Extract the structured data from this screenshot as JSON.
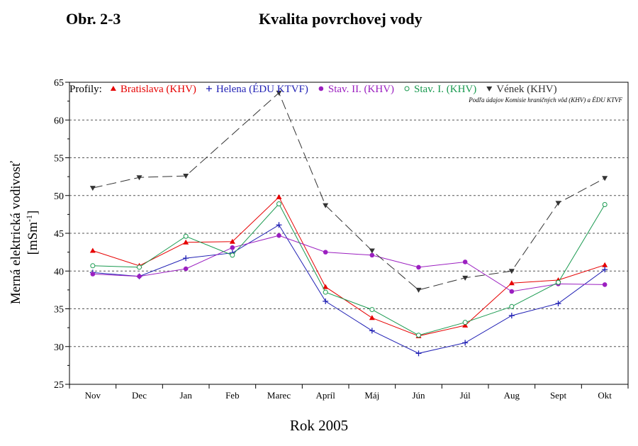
{
  "header": {
    "figure_label": "Obr. 2-3",
    "title": "Kvalita povrchovej vody"
  },
  "chart_data": {
    "type": "line",
    "title": "Kvalita povrchovej vody",
    "legend_prefix": "Profily:",
    "source_note": "Podľa údajov Komisie hraničných vôd (KHV) a ÉDU KTVF",
    "xlabel": "Rok 2005",
    "ylabel_line1": "Merná elektrická vodivosť",
    "ylabel_line2": "[mSm",
    "ylabel_sup": "-1",
    "ylabel_close": "]",
    "categories": [
      "Nov",
      "Dec",
      "Jan",
      "Feb",
      "Marec",
      "Apríl",
      "Máj",
      "Jún",
      "Júl",
      "Aug",
      "Sept",
      "Okt"
    ],
    "ylim": [
      25,
      65
    ],
    "yticks": [
      25,
      30,
      35,
      40,
      45,
      50,
      55,
      60,
      65
    ],
    "grid": "horizontal dashed",
    "legend_position": "top",
    "series": [
      {
        "name": "Bratislava (KHV)",
        "color": "#e60000",
        "marker": "triangle-up",
        "dash": "",
        "values": [
          42.7,
          40.7,
          43.8,
          43.9,
          49.8,
          37.9,
          33.8,
          31.4,
          32.8,
          38.4,
          38.8,
          40.8
        ]
      },
      {
        "name": "Helena (ÉDU KTVF)",
        "color": "#1f1fb4",
        "marker": "plus",
        "dash": "",
        "values": [
          39.8,
          39.3,
          41.7,
          42.4,
          46.1,
          36.0,
          32.1,
          29.1,
          30.5,
          34.1,
          35.7,
          40.2
        ]
      },
      {
        "name": "Stav. II. (KHV)",
        "color": "#9b1fc0",
        "marker": "circle-filled",
        "dash": "",
        "values": [
          39.6,
          39.3,
          40.3,
          43.1,
          44.7,
          42.5,
          42.1,
          40.5,
          41.2,
          37.3,
          38.3,
          38.2
        ]
      },
      {
        "name": "Stav. I. (KHV)",
        "color": "#1a9a50",
        "marker": "circle-open",
        "dash": "",
        "values": [
          40.7,
          40.5,
          44.6,
          42.1,
          48.9,
          37.2,
          34.9,
          31.5,
          33.2,
          35.3,
          38.5,
          48.8
        ]
      },
      {
        "name": "Vének (KHV)",
        "color": "#333333",
        "marker": "triangle-down",
        "dash": "14,6",
        "values": [
          51.0,
          52.4,
          52.6,
          null,
          63.6,
          48.7,
          42.7,
          37.5,
          39.1,
          40.0,
          49.0,
          52.3
        ]
      }
    ]
  }
}
